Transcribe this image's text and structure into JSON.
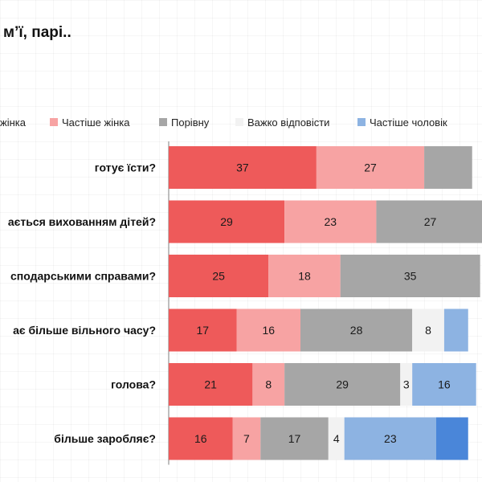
{
  "title": "м’ї, парі..",
  "chart_data": {
    "type": "bar",
    "orientation": "horizontal",
    "stacked": true,
    "legend_position": "top",
    "categories": [
      "готує їсти?",
      "ається вихованням дітей?",
      "сподарськими справами?",
      "ає більше вільного часу?",
      "голова?",
      "більше заробляє?"
    ],
    "series": [
      {
        "name": "жінка",
        "color": "#ee5a5a",
        "values": [
          37,
          29,
          25,
          17,
          21,
          16
        ]
      },
      {
        "name": "Частіше  жінка",
        "color": "#f7a3a3",
        "values": [
          27,
          23,
          18,
          16,
          8,
          7
        ]
      },
      {
        "name": "Порівну",
        "color": "#a6a6a6",
        "values": [
          12,
          27,
          35,
          28,
          29,
          17
        ]
      },
      {
        "name": "Важко відповісти",
        "color": "#f2f2f2",
        "values": [
          0,
          0,
          0,
          8,
          3,
          4
        ]
      },
      {
        "name": "Частіше  чоловік",
        "color": "#8db3e2",
        "values": [
          0,
          0,
          0,
          6,
          16,
          23
        ]
      },
      {
        "name": "",
        "color": "#4a86d9",
        "values": [
          0,
          0,
          0,
          0,
          0,
          8
        ]
      }
    ],
    "visible_labels": [
      [
        "37",
        "27"
      ],
      [
        "29",
        "23",
        "27"
      ],
      [
        "25",
        "18",
        "35"
      ],
      [
        "17",
        "16",
        "28",
        "8"
      ],
      [
        "21",
        "8",
        "29",
        "3",
        "16"
      ],
      [
        "16",
        "7",
        "17",
        "4",
        "23"
      ]
    ],
    "xlim": [
      0,
      100
    ],
    "grid": false
  }
}
